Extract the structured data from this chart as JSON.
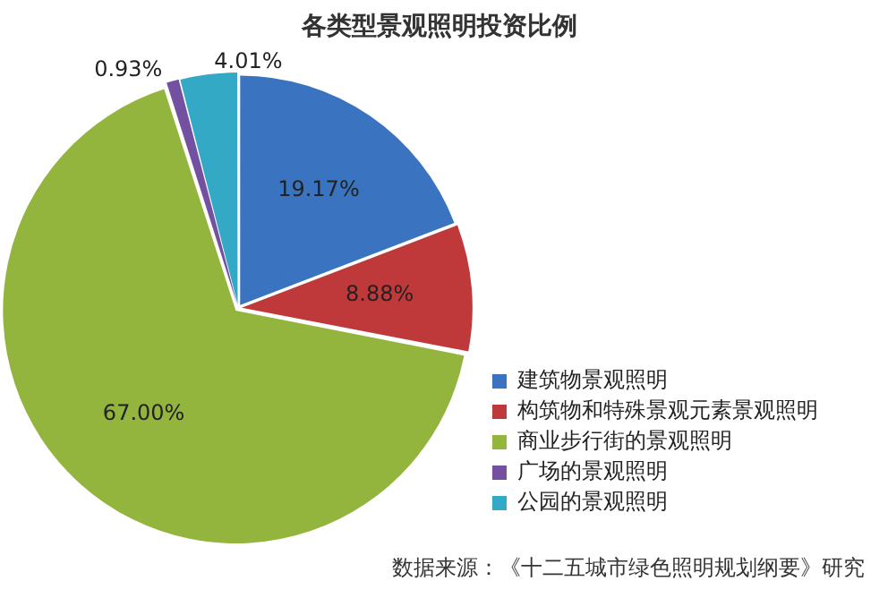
{
  "chart_data": {
    "type": "pie",
    "title": "各类型景观照明投资比例",
    "categories": [
      "建筑物景观照明",
      "构筑物和特殊景观元素景观照明",
      "商业步行街的景观照明",
      "广场的景观照明",
      "公园的景观照明"
    ],
    "values": [
      19.17,
      8.88,
      67.0,
      0.93,
      4.01
    ],
    "value_labels": [
      "19.17%",
      "8.88%",
      "67.00%",
      "0.93%",
      "4.01%"
    ],
    "colors": [
      "#3a74c0",
      "#c0393a",
      "#93b43d",
      "#7450a0",
      "#34a9c6"
    ],
    "legend": "right",
    "annotations": [
      "数据来源：《十二五城市绿色照明规划纲要》研究"
    ]
  }
}
